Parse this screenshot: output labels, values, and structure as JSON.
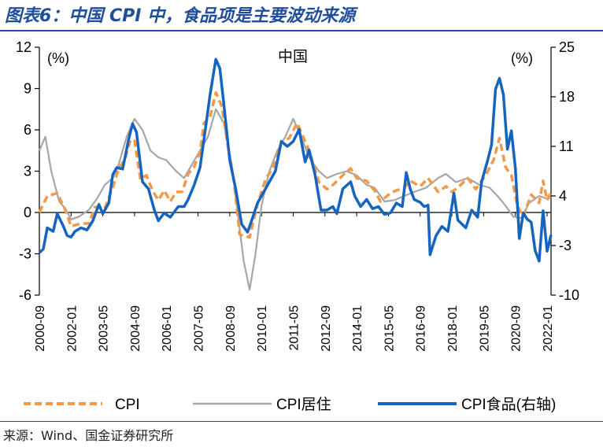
{
  "title": "图表6：中国 CPI 中，食品项是主要波动来源",
  "source": "来源：Wind、国金证券研究所",
  "chart_data": {
    "type": "line",
    "title": "中国",
    "left_unit": "(%)",
    "right_unit": "(%)",
    "y_left": {
      "min": -6,
      "max": 12,
      "ticks": [
        -6,
        -3,
        0,
        3,
        6,
        9,
        12
      ]
    },
    "y_right": {
      "min": -10,
      "max": 25,
      "ticks": [
        -10,
        -3,
        4,
        11,
        18,
        25
      ]
    },
    "x_range": [
      "2000-09",
      "2022-03"
    ],
    "x_ticks": [
      "2000-09",
      "2002-01",
      "2003-05",
      "2004-09",
      "2006-01",
      "2007-05",
      "2008-09",
      "2010-01",
      "2011-05",
      "2012-09",
      "2014-01",
      "2015-05",
      "2016-09",
      "2018-01",
      "2019-05",
      "2020-09",
      "2022-01"
    ],
    "legend": {
      "placement": "bottom"
    },
    "colors": {
      "cpi": "#f2994a",
      "housing": "#a6a6a6",
      "food": "#1565c0"
    },
    "series": [
      {
        "name": "CPI",
        "axis": "left",
        "style": "dashed",
        "points": [
          [
            "2000-09",
            0.0
          ],
          [
            "2001-01",
            1.2
          ],
          [
            "2001-06",
            1.4
          ],
          [
            "2001-10",
            0.2
          ],
          [
            "2002-01",
            -1.0
          ],
          [
            "2002-06",
            -0.8
          ],
          [
            "2002-10",
            -0.8
          ],
          [
            "2003-01",
            0.4
          ],
          [
            "2003-06",
            0.3
          ],
          [
            "2003-10",
            1.8
          ],
          [
            "2004-01",
            3.2
          ],
          [
            "2004-04",
            3.8
          ],
          [
            "2004-07",
            5.3
          ],
          [
            "2004-09",
            5.2
          ],
          [
            "2004-12",
            2.4
          ],
          [
            "2005-03",
            2.7
          ],
          [
            "2005-06",
            1.6
          ],
          [
            "2005-09",
            0.9
          ],
          [
            "2005-12",
            1.6
          ],
          [
            "2006-03",
            0.8
          ],
          [
            "2006-06",
            1.5
          ],
          [
            "2006-09",
            1.5
          ],
          [
            "2006-12",
            2.8
          ],
          [
            "2007-03",
            3.3
          ],
          [
            "2007-06",
            4.4
          ],
          [
            "2007-08",
            6.5
          ],
          [
            "2007-11",
            6.9
          ],
          [
            "2008-02",
            8.7
          ],
          [
            "2008-05",
            7.7
          ],
          [
            "2008-08",
            4.9
          ],
          [
            "2008-11",
            2.4
          ],
          [
            "2009-02",
            -1.6
          ],
          [
            "2009-07",
            -1.8
          ],
          [
            "2009-11",
            0.6
          ],
          [
            "2010-03",
            2.4
          ],
          [
            "2010-07",
            3.3
          ],
          [
            "2010-11",
            5.1
          ],
          [
            "2011-03",
            5.4
          ],
          [
            "2011-07",
            6.5
          ],
          [
            "2011-10",
            5.5
          ],
          [
            "2012-01",
            4.5
          ],
          [
            "2012-06",
            2.2
          ],
          [
            "2012-10",
            1.7
          ],
          [
            "2013-01",
            2.0
          ],
          [
            "2013-06",
            2.7
          ],
          [
            "2013-10",
            3.2
          ],
          [
            "2014-01",
            2.5
          ],
          [
            "2014-06",
            2.3
          ],
          [
            "2014-10",
            1.6
          ],
          [
            "2015-01",
            0.8
          ],
          [
            "2015-06",
            1.4
          ],
          [
            "2015-09",
            1.6
          ],
          [
            "2016-01",
            1.8
          ],
          [
            "2016-04",
            2.3
          ],
          [
            "2016-09",
            1.9
          ],
          [
            "2017-01",
            2.5
          ],
          [
            "2017-06",
            1.5
          ],
          [
            "2017-10",
            1.9
          ],
          [
            "2018-01",
            1.5
          ],
          [
            "2018-04",
            1.8
          ],
          [
            "2018-09",
            2.5
          ],
          [
            "2019-01",
            1.7
          ],
          [
            "2019-06",
            2.7
          ],
          [
            "2019-10",
            3.8
          ],
          [
            "2020-01",
            5.4
          ],
          [
            "2020-04",
            3.3
          ],
          [
            "2020-07",
            2.7
          ],
          [
            "2020-10",
            0.5
          ],
          [
            "2021-01",
            -0.3
          ],
          [
            "2021-05",
            1.3
          ],
          [
            "2021-09",
            0.7
          ],
          [
            "2021-11",
            2.3
          ],
          [
            "2022-01",
            0.9
          ],
          [
            "2022-03",
            1.5
          ]
        ]
      },
      {
        "name": "CPI居住",
        "axis": "left",
        "style": "solid",
        "points": [
          [
            "2000-09",
            4.5
          ],
          [
            "2000-12",
            5.5
          ],
          [
            "2001-03",
            3.0
          ],
          [
            "2001-07",
            0.8
          ],
          [
            "2001-10",
            0.3
          ],
          [
            "2002-01",
            -0.5
          ],
          [
            "2002-05",
            -0.3
          ],
          [
            "2002-10",
            0.2
          ],
          [
            "2003-02",
            1.0
          ],
          [
            "2003-06",
            2.0
          ],
          [
            "2003-10",
            2.5
          ],
          [
            "2004-01",
            3.5
          ],
          [
            "2004-05",
            5.5
          ],
          [
            "2004-09",
            6.8
          ],
          [
            "2005-01",
            6.0
          ],
          [
            "2005-05",
            4.5
          ],
          [
            "2005-09",
            4.0
          ],
          [
            "2006-01",
            3.8
          ],
          [
            "2006-06",
            3.0
          ],
          [
            "2006-10",
            2.5
          ],
          [
            "2007-02",
            3.5
          ],
          [
            "2007-06",
            4.5
          ],
          [
            "2007-10",
            5.5
          ],
          [
            "2008-02",
            7.5
          ],
          [
            "2008-06",
            6.5
          ],
          [
            "2008-10",
            3.5
          ],
          [
            "2009-01",
            0.0
          ],
          [
            "2009-04",
            -3.5
          ],
          [
            "2009-07",
            -5.6
          ],
          [
            "2009-10",
            -3.0
          ],
          [
            "2010-01",
            0.5
          ],
          [
            "2010-05",
            3.0
          ],
          [
            "2010-09",
            4.5
          ],
          [
            "2011-01",
            5.5
          ],
          [
            "2011-05",
            6.8
          ],
          [
            "2011-09",
            5.5
          ],
          [
            "2012-01",
            4.0
          ],
          [
            "2012-06",
            3.0
          ],
          [
            "2012-10",
            2.5
          ],
          [
            "2013-03",
            2.8
          ],
          [
            "2013-08",
            3.0
          ],
          [
            "2014-01",
            2.7
          ],
          [
            "2014-06",
            2.0
          ],
          [
            "2014-10",
            1.8
          ],
          [
            "2015-03",
            0.8
          ],
          [
            "2015-08",
            0.9
          ],
          [
            "2016-01",
            1.2
          ],
          [
            "2016-06",
            1.5
          ],
          [
            "2016-12",
            1.8
          ],
          [
            "2017-06",
            2.5
          ],
          [
            "2017-10",
            2.8
          ],
          [
            "2018-03",
            2.2
          ],
          [
            "2018-09",
            2.5
          ],
          [
            "2019-03",
            2.0
          ],
          [
            "2019-08",
            1.8
          ],
          [
            "2019-12",
            1.2
          ],
          [
            "2020-04",
            0.5
          ],
          [
            "2020-08",
            -0.3
          ],
          [
            "2020-12",
            -0.4
          ],
          [
            "2021-04",
            0.7
          ],
          [
            "2021-09",
            1.2
          ],
          [
            "2022-01",
            1.0
          ],
          [
            "2022-03",
            1.1
          ]
        ]
      },
      {
        "name": "CPI食品(右轴)",
        "axis": "right",
        "style": "solid",
        "points": [
          [
            "2000-09",
            -4.0
          ],
          [
            "2000-11",
            -3.5
          ],
          [
            "2001-01",
            -0.5
          ],
          [
            "2001-04",
            -1.0
          ],
          [
            "2001-06",
            1.5
          ],
          [
            "2001-09",
            -0.2
          ],
          [
            "2001-11",
            -1.6
          ],
          [
            "2002-01",
            -1.8
          ],
          [
            "2002-03",
            -1.0
          ],
          [
            "2002-06",
            -0.5
          ],
          [
            "2002-09",
            -0.8
          ],
          [
            "2002-12",
            0.5
          ],
          [
            "2003-03",
            2.8
          ],
          [
            "2003-05",
            1.5
          ],
          [
            "2003-08",
            3.0
          ],
          [
            "2003-10",
            7.0
          ],
          [
            "2003-12",
            8.0
          ],
          [
            "2004-03",
            7.8
          ],
          [
            "2004-06",
            12.0
          ],
          [
            "2004-08",
            14.2
          ],
          [
            "2004-10",
            13.0
          ],
          [
            "2005-01",
            6.0
          ],
          [
            "2005-04",
            5.0
          ],
          [
            "2005-07",
            2.0
          ],
          [
            "2005-09",
            0.5
          ],
          [
            "2005-12",
            1.6
          ],
          [
            "2006-03",
            1.0
          ],
          [
            "2006-07",
            2.5
          ],
          [
            "2006-10",
            2.5
          ],
          [
            "2006-12",
            3.5
          ],
          [
            "2007-03",
            5.5
          ],
          [
            "2007-06",
            8.0
          ],
          [
            "2007-09",
            14.0
          ],
          [
            "2007-11",
            18.2
          ],
          [
            "2008-02",
            23.3
          ],
          [
            "2008-04",
            22.0
          ],
          [
            "2008-06",
            17.0
          ],
          [
            "2008-09",
            9.0
          ],
          [
            "2008-12",
            5.0
          ],
          [
            "2009-03",
            0.0
          ],
          [
            "2009-06",
            -1.1
          ],
          [
            "2009-08",
            0.5
          ],
          [
            "2009-11",
            3.0
          ],
          [
            "2010-01",
            4.0
          ],
          [
            "2010-05",
            6.0
          ],
          [
            "2010-08",
            7.5
          ],
          [
            "2010-11",
            11.7
          ],
          [
            "2011-02",
            11.0
          ],
          [
            "2011-05",
            11.7
          ],
          [
            "2011-08",
            13.4
          ],
          [
            "2011-11",
            8.8
          ],
          [
            "2012-01",
            10.5
          ],
          [
            "2012-04",
            7.0
          ],
          [
            "2012-07",
            2.0
          ],
          [
            "2012-10",
            2.0
          ],
          [
            "2013-01",
            2.5
          ],
          [
            "2013-03",
            1.5
          ],
          [
            "2013-06",
            5.0
          ],
          [
            "2013-10",
            6.0
          ],
          [
            "2013-12",
            4.0
          ],
          [
            "2014-03",
            2.5
          ],
          [
            "2014-06",
            3.5
          ],
          [
            "2014-09",
            2.2
          ],
          [
            "2014-12",
            2.5
          ],
          [
            "2015-03",
            1.4
          ],
          [
            "2015-06",
            1.6
          ],
          [
            "2015-09",
            3.0
          ],
          [
            "2015-12",
            2.5
          ],
          [
            "2016-02",
            7.3
          ],
          [
            "2016-04",
            5.0
          ],
          [
            "2016-06",
            3.5
          ],
          [
            "2016-09",
            3.1
          ],
          [
            "2016-11",
            2.5
          ],
          [
            "2017-01",
            2.7
          ],
          [
            "2017-02",
            -4.3
          ],
          [
            "2017-05",
            -1.6
          ],
          [
            "2017-08",
            -0.3
          ],
          [
            "2017-11",
            -1.0
          ],
          [
            "2018-02",
            4.4
          ],
          [
            "2018-04",
            0.6
          ],
          [
            "2018-08",
            -0.5
          ],
          [
            "2018-11",
            2.0
          ],
          [
            "2019-02",
            1.0
          ],
          [
            "2019-04",
            6.0
          ],
          [
            "2019-07",
            9.0
          ],
          [
            "2019-09",
            11.2
          ],
          [
            "2019-11",
            19.1
          ],
          [
            "2020-01",
            20.6
          ],
          [
            "2020-03",
            18.3
          ],
          [
            "2020-05",
            10.6
          ],
          [
            "2020-07",
            13.2
          ],
          [
            "2020-09",
            7.9
          ],
          [
            "2020-11",
            -2.0
          ],
          [
            "2021-01",
            1.6
          ],
          [
            "2021-03",
            0.7
          ],
          [
            "2021-05",
            0.3
          ],
          [
            "2021-07",
            -3.7
          ],
          [
            "2021-09",
            -5.2
          ],
          [
            "2021-11",
            1.9
          ],
          [
            "2022-01",
            -3.8
          ],
          [
            "2022-03",
            -1.5
          ]
        ]
      }
    ]
  }
}
